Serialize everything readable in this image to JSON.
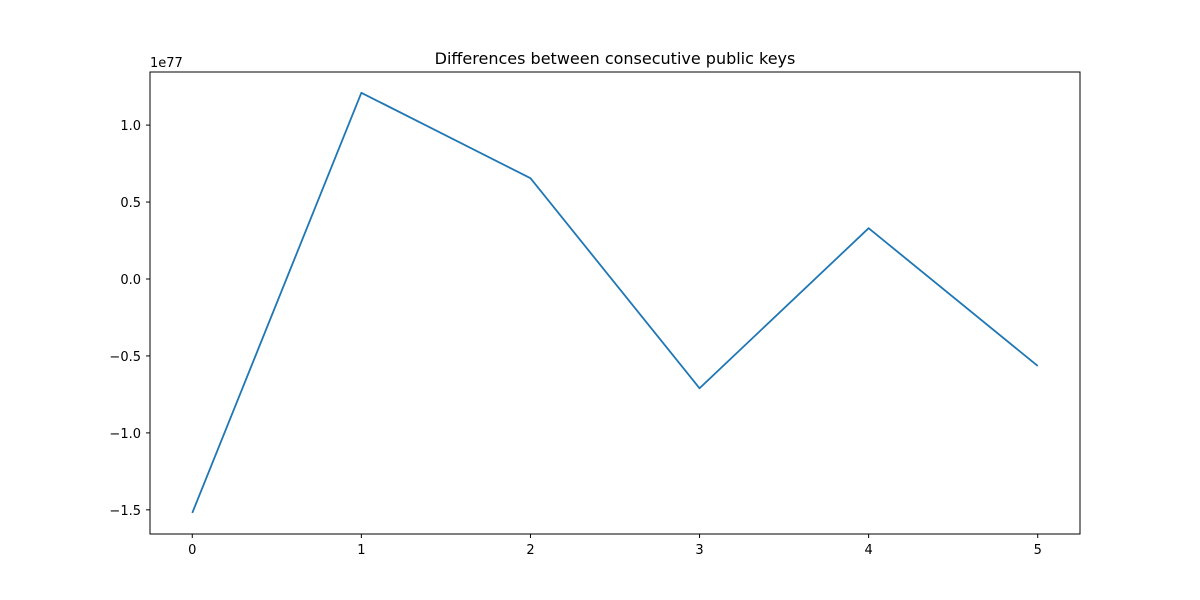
{
  "chart_data": {
    "type": "line",
    "title": "Differences between consecutive public keys",
    "y_offset_label": "1e77",
    "x": [
      0,
      1,
      2,
      3,
      4,
      5
    ],
    "series": [
      {
        "values": [
          -1.52,
          1.21,
          0.655,
          -0.71,
          0.33,
          -0.565
        ],
        "color": "#1f77b4"
      }
    ],
    "xlim": [
      -0.25,
      5.25
    ],
    "ylim": [
      -1.657,
      1.345
    ],
    "x_ticks": [
      0,
      1,
      2,
      3,
      4,
      5
    ],
    "x_tick_labels": [
      "0",
      "1",
      "2",
      "3",
      "4",
      "5"
    ],
    "y_ticks": [
      -1.5,
      -1.0,
      -0.5,
      0.0,
      0.5,
      1.0
    ],
    "y_tick_labels": [
      "−1.5",
      "−1.0",
      "−0.5",
      "0.0",
      "0.5",
      "1.0"
    ],
    "grid": false,
    "legend": "none"
  }
}
